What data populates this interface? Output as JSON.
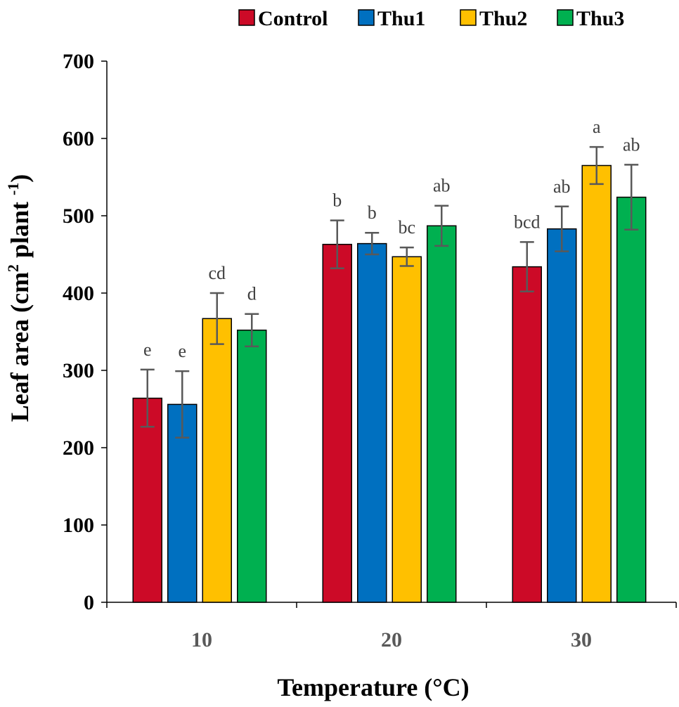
{
  "chart_data": {
    "type": "bar",
    "title": "",
    "xlabel": "Temperature (°C)",
    "ylabel_main": "Leaf area (cm",
    "ylabel_sup1": "2",
    "ylabel_mid": " plant ",
    "ylabel_sup2": "-1",
    "ylabel_end": ")",
    "ylim": [
      0,
      700
    ],
    "yticks": [
      "0",
      "100",
      "200",
      "300",
      "400",
      "500",
      "600",
      "700"
    ],
    "ytick_values": [
      0,
      100,
      200,
      300,
      400,
      500,
      600,
      700
    ],
    "categories": [
      "10",
      "20",
      "30"
    ],
    "legend_position": "top-center",
    "series": [
      {
        "name": "Control",
        "color": "#cc0a27",
        "values": [
          264,
          463,
          434
        ],
        "errors": [
          37,
          31,
          32
        ],
        "letters": [
          "e",
          "b",
          "bcd"
        ]
      },
      {
        "name": "Thu1",
        "color": "#0070c0",
        "values": [
          256,
          464,
          483
        ],
        "errors": [
          43,
          14,
          29
        ],
        "letters": [
          "e",
          "b",
          "ab"
        ]
      },
      {
        "name": "Thu2",
        "color": "#ffc000",
        "values": [
          367,
          447,
          565
        ],
        "errors": [
          33,
          12,
          24
        ],
        "letters": [
          "cd",
          "bc",
          "a"
        ]
      },
      {
        "name": "Thu3",
        "color": "#00b050",
        "values": [
          352,
          487,
          524
        ],
        "errors": [
          21,
          26,
          42
        ],
        "letters": [
          "d",
          "ab",
          "ab"
        ]
      }
    ]
  }
}
